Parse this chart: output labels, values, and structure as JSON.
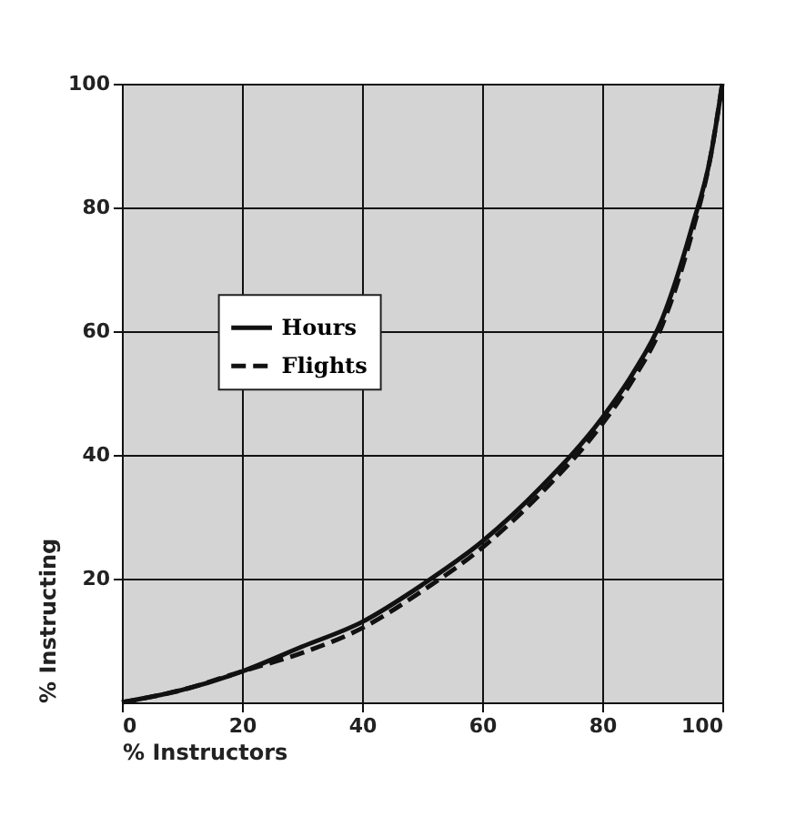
{
  "chart_data": {
    "type": "line",
    "xlabel": "% Instructors",
    "ylabel": "% Instructing",
    "x": [
      0,
      10,
      20,
      30,
      40,
      50,
      60,
      70,
      80,
      85,
      90,
      95,
      98,
      100
    ],
    "xlim": [
      0,
      100
    ],
    "xticks": [
      0,
      20,
      40,
      60,
      80,
      100
    ],
    "ylim": [
      0,
      100
    ],
    "yticks": [
      20,
      40,
      60,
      80,
      100
    ],
    "series": [
      {
        "name": "Hours",
        "color": "#111111",
        "line_style": "solid",
        "values": [
          0,
          2,
          5,
          9,
          13,
          19,
          26,
          35,
          46,
          53,
          62,
          77,
          88,
          100
        ]
      },
      {
        "name": "Flights",
        "color": "#111111",
        "line_style": "dashed",
        "values": [
          0,
          2,
          5,
          8,
          12,
          18,
          25,
          34,
          45,
          52,
          61,
          76,
          88,
          100
        ]
      }
    ],
    "grid": true,
    "legend": "left",
    "marker": "none"
  }
}
